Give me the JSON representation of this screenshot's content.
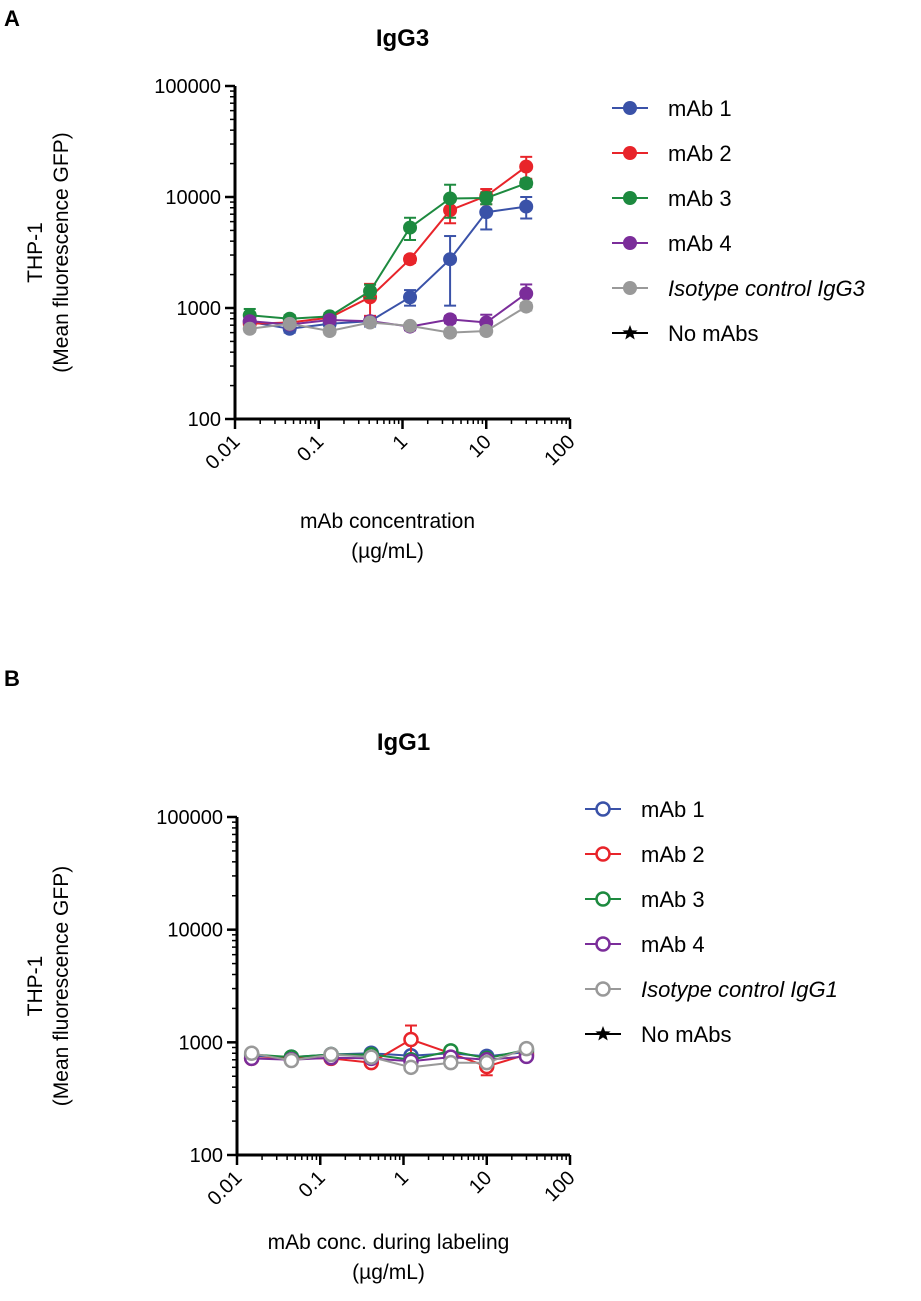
{
  "panels": [
    {
      "letter": "A",
      "chart_data": {
        "type": "line",
        "title": "IgG3",
        "xlabel": [
          "mAb concentration",
          "(µg/mL)"
        ],
        "ylabel": [
          "THP-1",
          "(Mean fluorescence GFP)"
        ],
        "xscale": "log",
        "yscale": "log",
        "xlim": [
          0.01,
          100
        ],
        "ylim": [
          100,
          100000
        ],
        "xticks": [
          "0.01",
          "0.1",
          "1",
          "10",
          "100"
        ],
        "yticks": [
          "100",
          "1000",
          "10000",
          "100000"
        ],
        "marker_style": "filled",
        "legend_position": "right",
        "x": [
          0.015,
          0.045,
          0.135,
          0.41,
          1.23,
          3.7,
          10,
          30
        ],
        "series": [
          {
            "name": "mAb 1",
            "color": "#3a52a8",
            "italic": false,
            "values": [
              750,
              650,
              720,
              760,
              1250,
              2750,
              7300,
              8200
            ],
            "errors": [
              60,
              50,
              60,
              80,
              200,
              1700,
              2200,
              1800
            ]
          },
          {
            "name": "mAb 2",
            "color": "#e8242a",
            "italic": false,
            "values": [
              720,
              740,
              820,
              1250,
              2750,
              7600,
              10200,
              18800
            ],
            "errors": [
              60,
              60,
              60,
              400,
              200,
              1800,
              1600,
              4200
            ]
          },
          {
            "name": "mAb 3",
            "color": "#1d8a3f",
            "italic": false,
            "values": [
              860,
              800,
              840,
              1420,
              5300,
              9700,
              9800,
              13300
            ],
            "errors": [
              120,
              60,
              60,
              200,
              1200,
              3200,
              1200,
              1000
            ]
          },
          {
            "name": "mAb 4",
            "color": "#7b2d9a",
            "italic": false,
            "values": [
              760,
              710,
              780,
              760,
              680,
              790,
              740,
              1350
            ],
            "errors": [
              60,
              50,
              60,
              60,
              50,
              60,
              130,
              280
            ]
          },
          {
            "name": "Isotype control IgG3",
            "color": "#999999",
            "italic": true,
            "values": [
              650,
              720,
              620,
              740,
              690,
              600,
              620,
              1030
            ],
            "errors": [
              40,
              40,
              40,
              40,
              40,
              40,
              40,
              80
            ]
          }
        ],
        "extra_legend": {
          "name": "No mAbs",
          "marker": "star",
          "color": "#000000"
        }
      }
    },
    {
      "letter": "B",
      "chart_data": {
        "type": "line",
        "title": "IgG1",
        "xlabel": [
          "mAb conc. during labeling",
          "(µg/mL)"
        ],
        "ylabel": [
          "THP-1",
          "(Mean fluorescence GFP)"
        ],
        "xscale": "log",
        "yscale": "log",
        "xlim": [
          0.01,
          100
        ],
        "ylim": [
          100,
          100000
        ],
        "xticks": [
          "0.01",
          "0.1",
          "1",
          "10",
          "100"
        ],
        "yticks": [
          "100",
          "1000",
          "10000",
          "100000"
        ],
        "marker_style": "open",
        "legend_position": "right",
        "x": [
          0.015,
          0.045,
          0.135,
          0.41,
          1.23,
          3.7,
          10,
          30
        ],
        "series": [
          {
            "name": "mAb 1",
            "color": "#3a52a8",
            "italic": false,
            "values": [
              760,
              740,
              780,
              800,
              760,
              800,
              750,
              820
            ],
            "errors": [
              40,
              40,
              40,
              40,
              40,
              40,
              40,
              40
            ]
          },
          {
            "name": "mAb 2",
            "color": "#e8242a",
            "italic": false,
            "values": [
              720,
              720,
              720,
              660,
              1060,
              800,
              610,
              780
            ],
            "errors": [
              40,
              40,
              40,
              40,
              350,
              40,
              100,
              40
            ]
          },
          {
            "name": "mAb 3",
            "color": "#1d8a3f",
            "italic": false,
            "values": [
              780,
              740,
              780,
              780,
              700,
              840,
              720,
              860
            ],
            "errors": [
              40,
              40,
              40,
              40,
              40,
              40,
              40,
              40
            ]
          },
          {
            "name": "mAb 4",
            "color": "#7b2d9a",
            "italic": false,
            "values": [
              720,
              700,
              730,
              720,
              680,
              740,
              700,
              750
            ],
            "errors": [
              40,
              40,
              40,
              40,
              40,
              40,
              40,
              40
            ]
          },
          {
            "name": "Isotype control IgG1",
            "color": "#999999",
            "italic": true,
            "values": [
              800,
              690,
              780,
              740,
              600,
              660,
              660,
              880
            ],
            "errors": [
              40,
              40,
              40,
              40,
              40,
              40,
              40,
              40
            ]
          }
        ],
        "extra_legend": {
          "name": "No mAbs",
          "marker": "star",
          "color": "#000000"
        }
      }
    }
  ]
}
